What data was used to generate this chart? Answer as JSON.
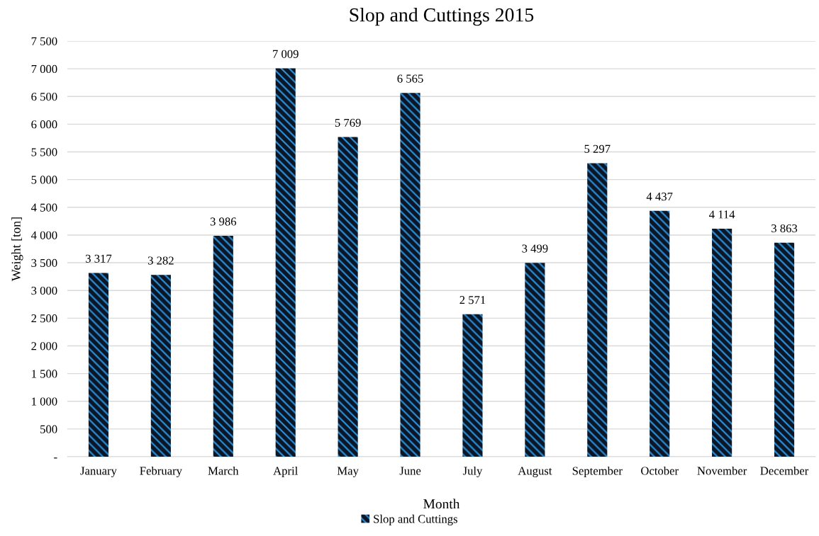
{
  "chart_data": {
    "type": "bar",
    "title": "Slop and Cuttings 2015",
    "xlabel": "Month",
    "ylabel": "Weight [ton]",
    "categories": [
      "January",
      "February",
      "March",
      "April",
      "May",
      "June",
      "July",
      "August",
      "September",
      "October",
      "November",
      "December"
    ],
    "series": [
      {
        "name": "Slop and Cuttings",
        "color": "#2b8fd8",
        "values": [
          3317,
          3282,
          3986,
          7009,
          5769,
          6565,
          2571,
          3499,
          5297,
          4437,
          4114,
          3863
        ],
        "value_labels": [
          "3 317",
          "3 282",
          "3 986",
          "7 009",
          "5 769",
          "6 565",
          "2 571",
          "3 499",
          "5 297",
          "4 437",
          "4 114",
          "3 863"
        ]
      }
    ],
    "ylim": [
      0,
      7500
    ],
    "yticks": [
      {
        "value": 0,
        "label": "-"
      },
      500,
      {
        "value": 1000,
        "label": "1 000"
      },
      {
        "value": 1500,
        "label": "1 500"
      },
      {
        "value": 2000,
        "label": "2 000"
      },
      {
        "value": 2500,
        "label": "2 500"
      },
      {
        "value": 3000,
        "label": "3 000"
      },
      {
        "value": 3500,
        "label": "3 500"
      },
      {
        "value": 4000,
        "label": "4 000"
      },
      {
        "value": 4500,
        "label": "4 500"
      },
      {
        "value": 5000,
        "label": "5 000"
      },
      {
        "value": 5500,
        "label": "5 500"
      },
      {
        "value": 6000,
        "label": "6 000"
      },
      {
        "value": 6500,
        "label": "6 500"
      },
      {
        "value": 7000,
        "label": "7 000"
      },
      {
        "value": 7500,
        "label": "7 500"
      }
    ],
    "grid": "y",
    "legend": "bottom"
  }
}
